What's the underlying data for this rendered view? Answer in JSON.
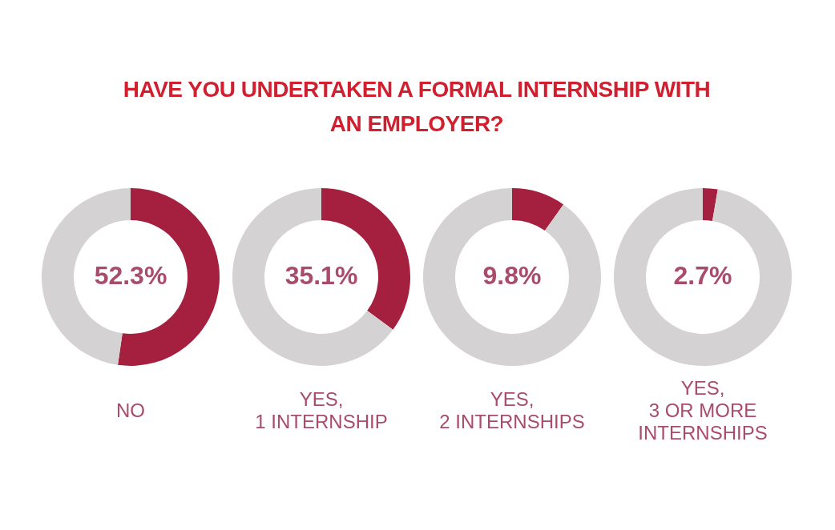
{
  "chart_data": [
    {
      "type": "donut",
      "title": "HAVE YOU UNDERTAKEN A FORMAL INTERNSHIP WITH AN EMPLOYER?",
      "xlabel": "NO",
      "categories": [
        null,
        null
      ],
      "values": [
        52.3,
        47.7
      ],
      "colors": [
        "#a51f3f",
        "#d4d2d3"
      ],
      "value_labels": [
        "52.3%",
        null
      ]
    },
    {
      "type": "donut",
      "xlabel": "YES,\n1 INTERNSHIP",
      "categories": [
        null,
        null
      ],
      "values": [
        35.1,
        64.9
      ],
      "colors": [
        "#a51f3f",
        "#d4d2d3"
      ],
      "value_labels": [
        "35.1%",
        null
      ]
    },
    {
      "type": "donut",
      "xlabel": "YES,\n2 INTERNSHIPS",
      "categories": [
        null,
        null
      ],
      "values": [
        9.8,
        90.2
      ],
      "colors": [
        "#a51f3f",
        "#d4d2d3"
      ],
      "value_labels": [
        "9.8%",
        null
      ]
    },
    {
      "type": "donut",
      "xlabel": "YES,\n3 OR MORE\nINTERNSHIPS",
      "categories": [
        null,
        null
      ],
      "values": [
        2.7,
        97.3
      ],
      "colors": [
        "#a51f3f",
        "#d4d2d3"
      ],
      "value_labels": [
        "2.7%",
        null
      ]
    }
  ]
}
